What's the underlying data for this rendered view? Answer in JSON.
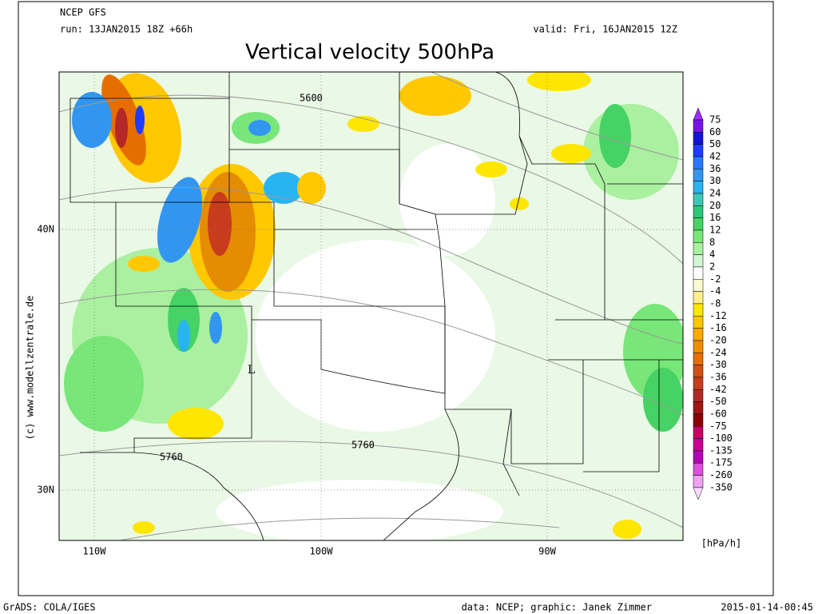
{
  "header": {
    "model": "NCEP GFS",
    "run": "run: 13JAN2015 18Z +66h",
    "valid": "valid: Fri, 16JAN2015 12Z",
    "title": "Vertical velocity 500hPa"
  },
  "map": {
    "lat_labels": [
      "40N",
      "30N"
    ],
    "lon_labels": [
      "110W",
      "100W",
      "90W"
    ],
    "contour_labels": [
      "5600",
      "5760",
      "5760"
    ],
    "low_marker": "L",
    "credit": "(c) www.modellzentrale.de"
  },
  "colorbar": {
    "levels": [
      "75",
      "60",
      "50",
      "42",
      "36",
      "30",
      "24",
      "20",
      "16",
      "12",
      "8",
      "4",
      "2",
      "-2",
      "-4",
      "-8",
      "-12",
      "-16",
      "-20",
      "-24",
      "-30",
      "-36",
      "-42",
      "-50",
      "-60",
      "-75",
      "-100",
      "-135",
      "-175",
      "-260",
      "-350"
    ],
    "colors": [
      "#9b30ff",
      "#7814e6",
      "#1414d2",
      "#1e3cff",
      "#2878ff",
      "#3296f0",
      "#28b4f0",
      "#3cc8b4",
      "#28c878",
      "#46d264",
      "#78e678",
      "#aaf0a0",
      "#d2f5d2",
      "#ffffff",
      "#fafad2",
      "#fff08c",
      "#ffe600",
      "#ffc800",
      "#ffaa00",
      "#f08c00",
      "#e66e00",
      "#d25014",
      "#c83c1e",
      "#b42828",
      "#a01414",
      "#8c0000",
      "#c80064",
      "#c80096",
      "#b400b4",
      "#dc50dc",
      "#f0a0f0",
      "#fadcfa"
    ],
    "unit": "[hPa/h]"
  },
  "footer": {
    "software": "GrADS: COLA/IGES",
    "source": "data: NCEP; graphic: Janek Zimmer",
    "timestamp": "2015-01-14-00:45"
  }
}
